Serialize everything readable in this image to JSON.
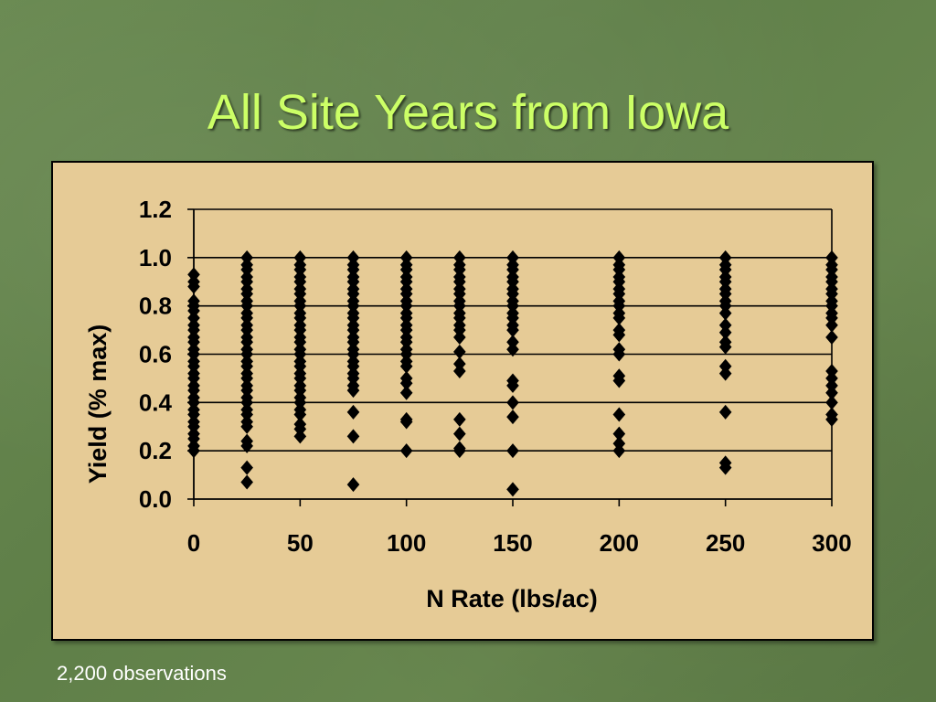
{
  "slide": {
    "title": "All Site Years from Iowa",
    "footnote": "2,200 observations"
  },
  "colors": {
    "title": "#ccff66",
    "panel_background": "#e6cb96",
    "marker": "#000000"
  },
  "chart_data": {
    "type": "scatter",
    "title": "",
    "xlabel": "N Rate (lbs/ac)",
    "ylabel": "Yield (% max)",
    "xlim": [
      0,
      300
    ],
    "ylim": [
      0.0,
      1.2
    ],
    "x_ticks": [
      "0",
      "50",
      "100",
      "150",
      "200",
      "250",
      "300"
    ],
    "y_ticks": [
      "0.0",
      "0.2",
      "0.4",
      "0.6",
      "0.8",
      "1.0",
      "1.2"
    ],
    "grid": "horizontal",
    "legend": "none",
    "marker": "diamond",
    "note": "Points are stacked at each N rate; listed values are the visible distinct marker positions (2,200 observations total).",
    "series": [
      {
        "points": [
          {
            "x": 0,
            "y": 0.93
          },
          {
            "x": 0,
            "y": 0.9
          },
          {
            "x": 0,
            "y": 0.88
          },
          {
            "x": 0,
            "y": 0.82
          },
          {
            "x": 0,
            "y": 0.8
          },
          {
            "x": 0,
            "y": 0.78
          },
          {
            "x": 0,
            "y": 0.75
          },
          {
            "x": 0,
            "y": 0.72
          },
          {
            "x": 0,
            "y": 0.7
          },
          {
            "x": 0,
            "y": 0.67
          },
          {
            "x": 0,
            "y": 0.65
          },
          {
            "x": 0,
            "y": 0.62
          },
          {
            "x": 0,
            "y": 0.6
          },
          {
            "x": 0,
            "y": 0.57
          },
          {
            "x": 0,
            "y": 0.55
          },
          {
            "x": 0,
            "y": 0.52
          },
          {
            "x": 0,
            "y": 0.5
          },
          {
            "x": 0,
            "y": 0.47
          },
          {
            "x": 0,
            "y": 0.45
          },
          {
            "x": 0,
            "y": 0.42
          },
          {
            "x": 0,
            "y": 0.4
          },
          {
            "x": 0,
            "y": 0.37
          },
          {
            "x": 0,
            "y": 0.35
          },
          {
            "x": 0,
            "y": 0.32
          },
          {
            "x": 0,
            "y": 0.3
          },
          {
            "x": 0,
            "y": 0.27
          },
          {
            "x": 0,
            "y": 0.25
          },
          {
            "x": 0,
            "y": 0.22
          },
          {
            "x": 0,
            "y": 0.2
          },
          {
            "x": 25,
            "y": 1.0
          },
          {
            "x": 25,
            "y": 0.97
          },
          {
            "x": 25,
            "y": 0.95
          },
          {
            "x": 25,
            "y": 0.92
          },
          {
            "x": 25,
            "y": 0.9
          },
          {
            "x": 25,
            "y": 0.87
          },
          {
            "x": 25,
            "y": 0.85
          },
          {
            "x": 25,
            "y": 0.82
          },
          {
            "x": 25,
            "y": 0.8
          },
          {
            "x": 25,
            "y": 0.77
          },
          {
            "x": 25,
            "y": 0.75
          },
          {
            "x": 25,
            "y": 0.72
          },
          {
            "x": 25,
            "y": 0.7
          },
          {
            "x": 25,
            "y": 0.67
          },
          {
            "x": 25,
            "y": 0.65
          },
          {
            "x": 25,
            "y": 0.62
          },
          {
            "x": 25,
            "y": 0.6
          },
          {
            "x": 25,
            "y": 0.57
          },
          {
            "x": 25,
            "y": 0.55
          },
          {
            "x": 25,
            "y": 0.52
          },
          {
            "x": 25,
            "y": 0.5
          },
          {
            "x": 25,
            "y": 0.47
          },
          {
            "x": 25,
            "y": 0.45
          },
          {
            "x": 25,
            "y": 0.42
          },
          {
            "x": 25,
            "y": 0.4
          },
          {
            "x": 25,
            "y": 0.37
          },
          {
            "x": 25,
            "y": 0.35
          },
          {
            "x": 25,
            "y": 0.32
          },
          {
            "x": 25,
            "y": 0.3
          },
          {
            "x": 25,
            "y": 0.24
          },
          {
            "x": 25,
            "y": 0.22
          },
          {
            "x": 25,
            "y": 0.13
          },
          {
            "x": 25,
            "y": 0.07
          },
          {
            "x": 50,
            "y": 1.0
          },
          {
            "x": 50,
            "y": 0.97
          },
          {
            "x": 50,
            "y": 0.95
          },
          {
            "x": 50,
            "y": 0.92
          },
          {
            "x": 50,
            "y": 0.9
          },
          {
            "x": 50,
            "y": 0.87
          },
          {
            "x": 50,
            "y": 0.85
          },
          {
            "x": 50,
            "y": 0.82
          },
          {
            "x": 50,
            "y": 0.8
          },
          {
            "x": 50,
            "y": 0.77
          },
          {
            "x": 50,
            "y": 0.75
          },
          {
            "x": 50,
            "y": 0.72
          },
          {
            "x": 50,
            "y": 0.7
          },
          {
            "x": 50,
            "y": 0.67
          },
          {
            "x": 50,
            "y": 0.65
          },
          {
            "x": 50,
            "y": 0.62
          },
          {
            "x": 50,
            "y": 0.6
          },
          {
            "x": 50,
            "y": 0.57
          },
          {
            "x": 50,
            "y": 0.55
          },
          {
            "x": 50,
            "y": 0.52
          },
          {
            "x": 50,
            "y": 0.5
          },
          {
            "x": 50,
            "y": 0.47
          },
          {
            "x": 50,
            "y": 0.45
          },
          {
            "x": 50,
            "y": 0.42
          },
          {
            "x": 50,
            "y": 0.4
          },
          {
            "x": 50,
            "y": 0.37
          },
          {
            "x": 50,
            "y": 0.35
          },
          {
            "x": 50,
            "y": 0.31
          },
          {
            "x": 50,
            "y": 0.29
          },
          {
            "x": 50,
            "y": 0.26
          },
          {
            "x": 75,
            "y": 1.0
          },
          {
            "x": 75,
            "y": 0.97
          },
          {
            "x": 75,
            "y": 0.95
          },
          {
            "x": 75,
            "y": 0.92
          },
          {
            "x": 75,
            "y": 0.9
          },
          {
            "x": 75,
            "y": 0.87
          },
          {
            "x": 75,
            "y": 0.85
          },
          {
            "x": 75,
            "y": 0.82
          },
          {
            "x": 75,
            "y": 0.8
          },
          {
            "x": 75,
            "y": 0.77
          },
          {
            "x": 75,
            "y": 0.75
          },
          {
            "x": 75,
            "y": 0.72
          },
          {
            "x": 75,
            "y": 0.7
          },
          {
            "x": 75,
            "y": 0.67
          },
          {
            "x": 75,
            "y": 0.65
          },
          {
            "x": 75,
            "y": 0.62
          },
          {
            "x": 75,
            "y": 0.6
          },
          {
            "x": 75,
            "y": 0.57
          },
          {
            "x": 75,
            "y": 0.55
          },
          {
            "x": 75,
            "y": 0.52
          },
          {
            "x": 75,
            "y": 0.5
          },
          {
            "x": 75,
            "y": 0.47
          },
          {
            "x": 75,
            "y": 0.45
          },
          {
            "x": 75,
            "y": 0.36
          },
          {
            "x": 75,
            "y": 0.26
          },
          {
            "x": 75,
            "y": 0.06
          },
          {
            "x": 100,
            "y": 1.0
          },
          {
            "x": 100,
            "y": 0.97
          },
          {
            "x": 100,
            "y": 0.95
          },
          {
            "x": 100,
            "y": 0.92
          },
          {
            "x": 100,
            "y": 0.9
          },
          {
            "x": 100,
            "y": 0.87
          },
          {
            "x": 100,
            "y": 0.85
          },
          {
            "x": 100,
            "y": 0.82
          },
          {
            "x": 100,
            "y": 0.8
          },
          {
            "x": 100,
            "y": 0.77
          },
          {
            "x": 100,
            "y": 0.75
          },
          {
            "x": 100,
            "y": 0.72
          },
          {
            "x": 100,
            "y": 0.7
          },
          {
            "x": 100,
            "y": 0.67
          },
          {
            "x": 100,
            "y": 0.65
          },
          {
            "x": 100,
            "y": 0.62
          },
          {
            "x": 100,
            "y": 0.6
          },
          {
            "x": 100,
            "y": 0.57
          },
          {
            "x": 100,
            "y": 0.55
          },
          {
            "x": 100,
            "y": 0.5
          },
          {
            "x": 100,
            "y": 0.48
          },
          {
            "x": 100,
            "y": 0.44
          },
          {
            "x": 100,
            "y": 0.33
          },
          {
            "x": 100,
            "y": 0.32
          },
          {
            "x": 100,
            "y": 0.2
          },
          {
            "x": 125,
            "y": 1.0
          },
          {
            "x": 125,
            "y": 0.97
          },
          {
            "x": 125,
            "y": 0.95
          },
          {
            "x": 125,
            "y": 0.92
          },
          {
            "x": 125,
            "y": 0.9
          },
          {
            "x": 125,
            "y": 0.87
          },
          {
            "x": 125,
            "y": 0.85
          },
          {
            "x": 125,
            "y": 0.82
          },
          {
            "x": 125,
            "y": 0.8
          },
          {
            "x": 125,
            "y": 0.77
          },
          {
            "x": 125,
            "y": 0.75
          },
          {
            "x": 125,
            "y": 0.72
          },
          {
            "x": 125,
            "y": 0.7
          },
          {
            "x": 125,
            "y": 0.67
          },
          {
            "x": 125,
            "y": 0.61
          },
          {
            "x": 125,
            "y": 0.56
          },
          {
            "x": 125,
            "y": 0.53
          },
          {
            "x": 125,
            "y": 0.33
          },
          {
            "x": 125,
            "y": 0.27
          },
          {
            "x": 125,
            "y": 0.21
          },
          {
            "x": 125,
            "y": 0.2
          },
          {
            "x": 150,
            "y": 1.0
          },
          {
            "x": 150,
            "y": 0.97
          },
          {
            "x": 150,
            "y": 0.95
          },
          {
            "x": 150,
            "y": 0.92
          },
          {
            "x": 150,
            "y": 0.9
          },
          {
            "x": 150,
            "y": 0.87
          },
          {
            "x": 150,
            "y": 0.85
          },
          {
            "x": 150,
            "y": 0.82
          },
          {
            "x": 150,
            "y": 0.8
          },
          {
            "x": 150,
            "y": 0.77
          },
          {
            "x": 150,
            "y": 0.75
          },
          {
            "x": 150,
            "y": 0.72
          },
          {
            "x": 150,
            "y": 0.7
          },
          {
            "x": 150,
            "y": 0.65
          },
          {
            "x": 150,
            "y": 0.62
          },
          {
            "x": 150,
            "y": 0.49
          },
          {
            "x": 150,
            "y": 0.47
          },
          {
            "x": 150,
            "y": 0.4
          },
          {
            "x": 150,
            "y": 0.34
          },
          {
            "x": 150,
            "y": 0.2
          },
          {
            "x": 150,
            "y": 0.04
          },
          {
            "x": 200,
            "y": 1.0
          },
          {
            "x": 200,
            "y": 0.97
          },
          {
            "x": 200,
            "y": 0.95
          },
          {
            "x": 200,
            "y": 0.92
          },
          {
            "x": 200,
            "y": 0.9
          },
          {
            "x": 200,
            "y": 0.87
          },
          {
            "x": 200,
            "y": 0.85
          },
          {
            "x": 200,
            "y": 0.82
          },
          {
            "x": 200,
            "y": 0.8
          },
          {
            "x": 200,
            "y": 0.77
          },
          {
            "x": 200,
            "y": 0.75
          },
          {
            "x": 200,
            "y": 0.7
          },
          {
            "x": 200,
            "y": 0.68
          },
          {
            "x": 200,
            "y": 0.62
          },
          {
            "x": 200,
            "y": 0.6
          },
          {
            "x": 200,
            "y": 0.51
          },
          {
            "x": 200,
            "y": 0.49
          },
          {
            "x": 200,
            "y": 0.35
          },
          {
            "x": 200,
            "y": 0.27
          },
          {
            "x": 200,
            "y": 0.23
          },
          {
            "x": 200,
            "y": 0.2
          },
          {
            "x": 250,
            "y": 1.0
          },
          {
            "x": 250,
            "y": 0.97
          },
          {
            "x": 250,
            "y": 0.95
          },
          {
            "x": 250,
            "y": 0.92
          },
          {
            "x": 250,
            "y": 0.9
          },
          {
            "x": 250,
            "y": 0.87
          },
          {
            "x": 250,
            "y": 0.85
          },
          {
            "x": 250,
            "y": 0.82
          },
          {
            "x": 250,
            "y": 0.8
          },
          {
            "x": 250,
            "y": 0.77
          },
          {
            "x": 250,
            "y": 0.72
          },
          {
            "x": 250,
            "y": 0.69
          },
          {
            "x": 250,
            "y": 0.65
          },
          {
            "x": 250,
            "y": 0.63
          },
          {
            "x": 250,
            "y": 0.55
          },
          {
            "x": 250,
            "y": 0.52
          },
          {
            "x": 250,
            "y": 0.36
          },
          {
            "x": 250,
            "y": 0.15
          },
          {
            "x": 250,
            "y": 0.13
          },
          {
            "x": 300,
            "y": 1.0
          },
          {
            "x": 300,
            "y": 0.97
          },
          {
            "x": 300,
            "y": 0.95
          },
          {
            "x": 300,
            "y": 0.92
          },
          {
            "x": 300,
            "y": 0.9
          },
          {
            "x": 300,
            "y": 0.87
          },
          {
            "x": 300,
            "y": 0.85
          },
          {
            "x": 300,
            "y": 0.82
          },
          {
            "x": 300,
            "y": 0.8
          },
          {
            "x": 300,
            "y": 0.77
          },
          {
            "x": 300,
            "y": 0.75
          },
          {
            "x": 300,
            "y": 0.72
          },
          {
            "x": 300,
            "y": 0.67
          },
          {
            "x": 300,
            "y": 0.53
          },
          {
            "x": 300,
            "y": 0.5
          },
          {
            "x": 300,
            "y": 0.47
          },
          {
            "x": 300,
            "y": 0.44
          },
          {
            "x": 300,
            "y": 0.4
          },
          {
            "x": 300,
            "y": 0.35
          },
          {
            "x": 300,
            "y": 0.33
          }
        ]
      }
    ]
  }
}
